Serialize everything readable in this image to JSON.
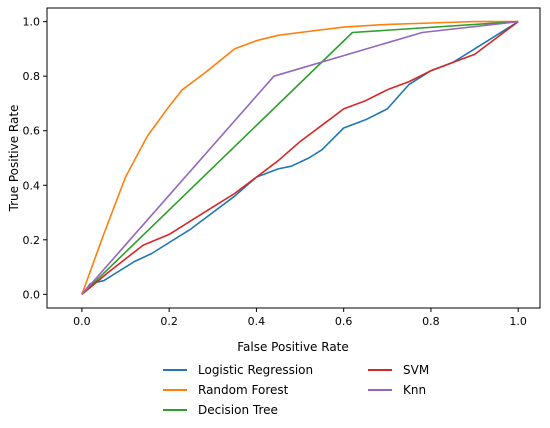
{
  "chart_data": {
    "type": "line",
    "title": "",
    "xlabel": "False Positive Rate",
    "ylabel": "True Positive Rate",
    "xlim": [
      -0.08,
      1.05
    ],
    "ylim": [
      -0.05,
      1.05
    ],
    "xticks": [
      "0.0",
      "0.2",
      "0.4",
      "0.6",
      "0.8",
      "1.0"
    ],
    "yticks": [
      "0.0",
      "0.2",
      "0.4",
      "0.6",
      "0.8",
      "1.0"
    ],
    "grid": false,
    "legend_position": "below",
    "series": [
      {
        "name": "Logistic Regression",
        "color": "#1f77b4",
        "x": [
          0.0,
          0.02,
          0.05,
          0.08,
          0.12,
          0.16,
          0.2,
          0.25,
          0.3,
          0.35,
          0.4,
          0.45,
          0.48,
          0.52,
          0.55,
          0.6,
          0.65,
          0.7,
          0.75,
          0.8,
          0.85,
          0.9,
          0.95,
          1.0
        ],
        "y": [
          0.0,
          0.04,
          0.05,
          0.08,
          0.12,
          0.15,
          0.19,
          0.24,
          0.3,
          0.36,
          0.43,
          0.46,
          0.47,
          0.5,
          0.53,
          0.61,
          0.64,
          0.68,
          0.77,
          0.82,
          0.85,
          0.9,
          0.95,
          1.0
        ]
      },
      {
        "name": "Random Forest",
        "color": "#ff7f0e",
        "x": [
          0.0,
          0.05,
          0.1,
          0.15,
          0.2,
          0.23,
          0.28,
          0.35,
          0.4,
          0.45,
          0.5,
          0.6,
          0.7,
          0.8,
          0.9,
          1.0
        ],
        "y": [
          0.0,
          0.22,
          0.43,
          0.58,
          0.69,
          0.75,
          0.81,
          0.9,
          0.93,
          0.95,
          0.96,
          0.98,
          0.99,
          0.995,
          1.0,
          1.0
        ]
      },
      {
        "name": "Decision Tree",
        "color": "#2ca02c",
        "x": [
          0.0,
          0.62,
          1.0
        ],
        "y": [
          0.0,
          0.96,
          1.0
        ]
      },
      {
        "name": "SVM",
        "color": "#d62728",
        "x": [
          0.0,
          0.03,
          0.06,
          0.1,
          0.14,
          0.2,
          0.25,
          0.3,
          0.35,
          0.4,
          0.45,
          0.5,
          0.55,
          0.6,
          0.65,
          0.7,
          0.75,
          0.8,
          0.85,
          0.9,
          0.95,
          1.0
        ],
        "y": [
          0.0,
          0.04,
          0.08,
          0.13,
          0.18,
          0.22,
          0.27,
          0.32,
          0.37,
          0.43,
          0.49,
          0.56,
          0.62,
          0.68,
          0.71,
          0.75,
          0.78,
          0.82,
          0.85,
          0.88,
          0.94,
          1.0
        ]
      },
      {
        "name": "Knn",
        "color": "#9467bd",
        "x": [
          0.0,
          0.44,
          0.78,
          1.0
        ],
        "y": [
          0.0,
          0.8,
          0.96,
          1.0
        ]
      }
    ]
  }
}
